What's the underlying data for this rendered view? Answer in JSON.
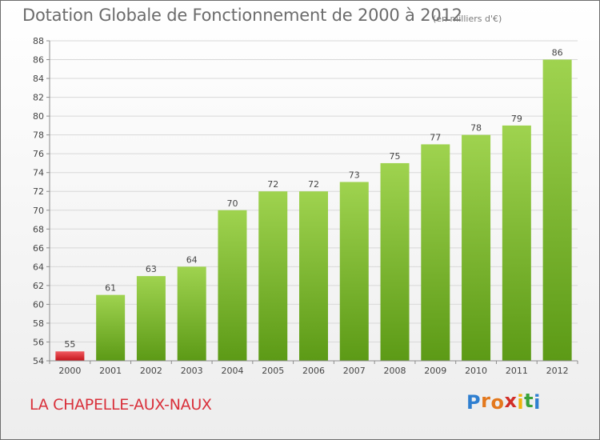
{
  "header": {
    "title": "Dotation Globale de Fonctionnement de 2000 à 2012",
    "unit": "(en milliers d'€)"
  },
  "commune": "LA CHAPELLE-AUX-NAUX",
  "logo": {
    "letters": [
      "P",
      "r",
      "o",
      "x",
      "i",
      "t",
      "i"
    ],
    "colors": [
      "#2f7fd0",
      "#e3781d",
      "#e3781d",
      "#d12e27",
      "#f0b30a",
      "#3aa23a",
      "#2f7fd0"
    ]
  },
  "colors": {
    "bar_top": "#9fd34f",
    "bar_bottom": "#5c9a16",
    "bar_highlight_top": "#f05a5f",
    "bar_highlight_bottom": "#c4141b",
    "grid": "#d8d8d8",
    "axis": "#8c8c8c",
    "text": "#444444"
  },
  "chart_data": {
    "type": "bar",
    "title": "Dotation Globale de Fonctionnement de 2000 à 2012",
    "subtitle": "(en milliers d'€)",
    "xlabel": "",
    "ylabel": "",
    "categories": [
      "2000",
      "2001",
      "2002",
      "2003",
      "2004",
      "2005",
      "2006",
      "2007",
      "2008",
      "2009",
      "2010",
      "2011",
      "2012"
    ],
    "values": [
      55,
      61,
      63,
      64,
      70,
      72,
      72,
      73,
      75,
      77,
      78,
      79,
      86
    ],
    "labels": [
      "55",
      "61",
      "63",
      "64",
      "70",
      "72",
      "72",
      "73",
      "75",
      "77",
      "78",
      "79",
      "86"
    ],
    "ylim": [
      54,
      88
    ],
    "yticks": [
      54,
      56,
      58,
      60,
      62,
      64,
      66,
      68,
      70,
      72,
      74,
      76,
      78,
      80,
      82,
      84,
      86,
      88
    ],
    "grid": true,
    "legend": "none",
    "highlight_index": 0
  }
}
